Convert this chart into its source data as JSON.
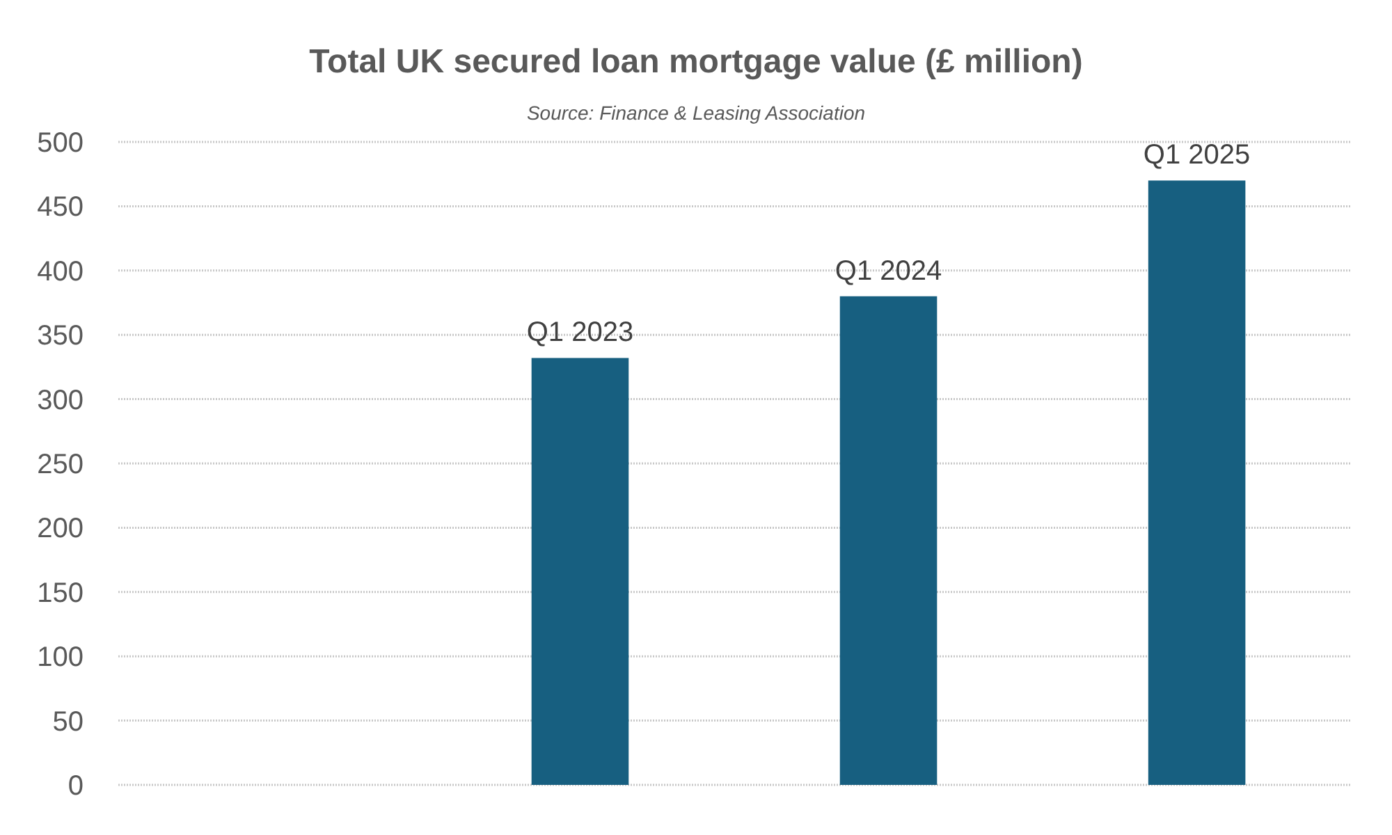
{
  "chart_data": {
    "type": "bar",
    "title": "Total UK secured loan mortgage value (£ million)",
    "annotations": [
      "Source: Finance & Leasing Association"
    ],
    "categories": [
      null,
      "Q1 2023",
      "Q1 2024",
      "Q1 2025"
    ],
    "values": [
      null,
      332,
      380,
      470
    ],
    "color": "#175f80",
    "ylim": [
      0,
      500
    ],
    "yticks": [
      0,
      50,
      100,
      150,
      200,
      250,
      300,
      350,
      400,
      450,
      500
    ],
    "grid": "y"
  }
}
